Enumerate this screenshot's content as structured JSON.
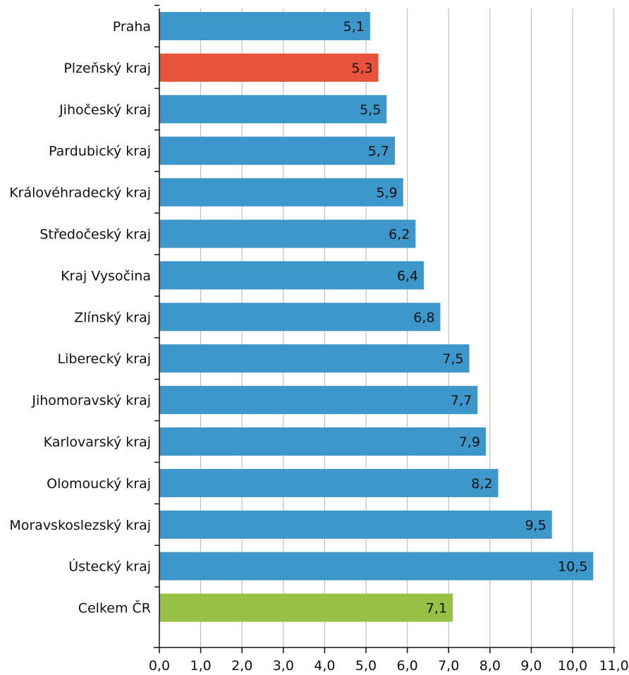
{
  "chart_data": {
    "type": "bar",
    "orientation": "horizontal",
    "title": "",
    "xlabel": "",
    "ylabel": "",
    "categories": [
      "Praha",
      "Plzeňský kraj",
      "Jihočeský kraj",
      "Pardubický kraj",
      "Královéhradecký kraj",
      "Středočeský kraj",
      "Kraj Vysočina",
      "Zlínský kraj",
      "Liberecký kraj",
      "Jihomoravský kraj",
      "Karlovarský kraj",
      "Olomoucký kraj",
      "Moravskoslezský kraj",
      "Ústecký kraj",
      "Celkem ČR"
    ],
    "values": [
      5.1,
      5.3,
      5.5,
      5.7,
      5.9,
      6.2,
      6.4,
      6.8,
      7.5,
      7.7,
      7.9,
      8.2,
      9.5,
      10.5,
      7.1
    ],
    "value_labels": [
      "5,1",
      "5,3",
      "5,5",
      "5,7",
      "5,9",
      "6,2",
      "6,4",
      "6,8",
      "7,5",
      "7,7",
      "7,9",
      "8,2",
      "9,5",
      "10,5",
      "7,1"
    ],
    "bar_colors": [
      "#3e97cb",
      "#e8533a",
      "#3e97cb",
      "#3e97cb",
      "#3e97cb",
      "#3e97cb",
      "#3e97cb",
      "#3e97cb",
      "#3e97cb",
      "#3e97cb",
      "#3e97cb",
      "#3e97cb",
      "#3e97cb",
      "#3e97cb",
      "#96c145"
    ],
    "xlim": [
      0,
      11
    ],
    "xticks": [
      "0,0",
      "1,0",
      "2,0",
      "3,0",
      "4,0",
      "5,0",
      "6,0",
      "7,0",
      "8,0",
      "9,0",
      "10,0",
      "11,0"
    ],
    "grid": "vertical",
    "legend": "none"
  }
}
